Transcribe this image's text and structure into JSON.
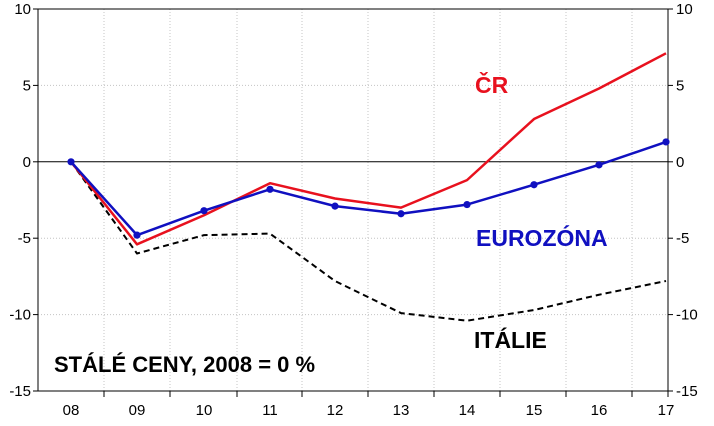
{
  "chart_data": {
    "type": "line",
    "x": [
      "08",
      "09",
      "10",
      "11",
      "12",
      "13",
      "14",
      "15",
      "16",
      "17"
    ],
    "ylim": [
      -15,
      10
    ],
    "y_ticks": [
      10,
      5,
      0,
      -5,
      -10,
      -15
    ],
    "grid": true,
    "note": "STÁLÉ CENY, 2008 = 0 %",
    "series": [
      {
        "name": "ČR",
        "color": "#e8111e",
        "style": "solid",
        "markers": false,
        "values": [
          0,
          -5.4,
          -3.5,
          -1.4,
          -2.4,
          -3.0,
          -1.2,
          2.8,
          4.8,
          7.1
        ]
      },
      {
        "name": "EUROZÓNA",
        "color": "#1010c0",
        "style": "solid",
        "markers": true,
        "values": [
          0,
          -4.8,
          -3.2,
          -1.8,
          -2.9,
          -3.4,
          -2.8,
          -1.5,
          -0.2,
          1.3
        ]
      },
      {
        "name": "ITÁLIE",
        "color": "#000000",
        "style": "dashed",
        "markers": false,
        "values": [
          0,
          -6.0,
          -4.8,
          -4.7,
          -7.8,
          -9.9,
          -10.4,
          -9.7,
          -8.7,
          -7.8
        ]
      }
    ]
  }
}
